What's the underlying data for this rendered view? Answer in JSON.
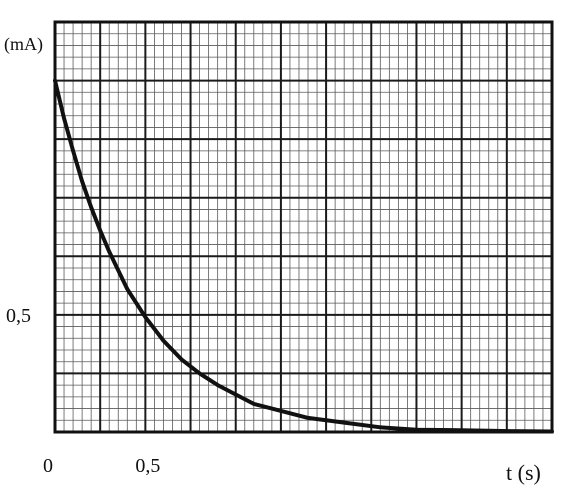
{
  "chart_data": {
    "type": "line",
    "title": "",
    "xlabel": "t (s)",
    "ylabel": "(mA)",
    "xlim": [
      0,
      2.75
    ],
    "ylim": [
      0,
      1.75
    ],
    "grid": true,
    "x_ticks": [
      {
        "value": 0,
        "label": "0"
      },
      {
        "value": 0.5,
        "label": "0,5"
      }
    ],
    "y_ticks": [
      {
        "value": 0.5,
        "label": "0,5"
      }
    ],
    "series": [
      {
        "x": [
          0,
          0.05,
          0.1,
          0.15,
          0.2,
          0.25,
          0.3,
          0.4,
          0.5,
          0.6,
          0.7,
          0.8,
          0.9,
          1.0,
          1.1,
          1.2,
          1.4,
          1.6,
          1.8,
          2.0,
          2.2,
          2.4,
          2.6,
          2.75
        ],
        "y": [
          1.5,
          1.34,
          1.2,
          1.07,
          0.96,
          0.86,
          0.77,
          0.61,
          0.49,
          0.39,
          0.31,
          0.25,
          0.2,
          0.16,
          0.12,
          0.1,
          0.06,
          0.04,
          0.02,
          0.01,
          0.008,
          0.005,
          0.003,
          0.002
        ],
        "color": "#111111"
      }
    ]
  }
}
